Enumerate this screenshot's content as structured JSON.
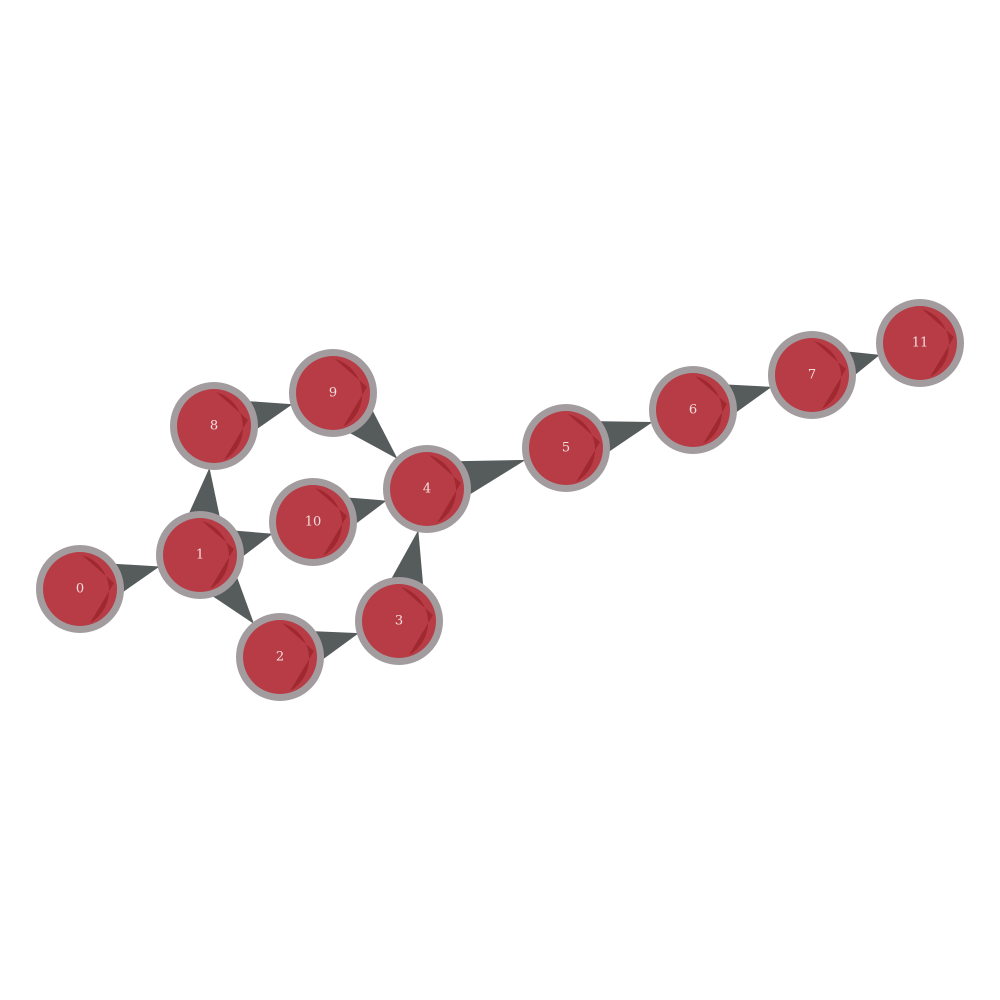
{
  "colors": {
    "background": "#ffffff",
    "node_fill": "#b83c46",
    "node_stroke": "#a29c9f",
    "node_shadow": "#8f1d22",
    "edge": "#565b5c",
    "label": "#f3dede"
  },
  "nodes": [
    {
      "id": "0",
      "label": "0"
    },
    {
      "id": "1",
      "label": "1"
    },
    {
      "id": "2",
      "label": "2"
    },
    {
      "id": "3",
      "label": "3"
    },
    {
      "id": "4",
      "label": "4"
    },
    {
      "id": "5",
      "label": "5"
    },
    {
      "id": "6",
      "label": "6"
    },
    {
      "id": "7",
      "label": "7"
    },
    {
      "id": "8",
      "label": "8"
    },
    {
      "id": "9",
      "label": "9"
    },
    {
      "id": "10",
      "label": "10"
    },
    {
      "id": "11",
      "label": "11"
    }
  ],
  "edges": [
    {
      "source": "0",
      "target": "1"
    },
    {
      "source": "1",
      "target": "8"
    },
    {
      "source": "1",
      "target": "10"
    },
    {
      "source": "1",
      "target": "2"
    },
    {
      "source": "8",
      "target": "9"
    },
    {
      "source": "9",
      "target": "4"
    },
    {
      "source": "10",
      "target": "4"
    },
    {
      "source": "2",
      "target": "3"
    },
    {
      "source": "3",
      "target": "4"
    },
    {
      "source": "4",
      "target": "5"
    },
    {
      "source": "5",
      "target": "6"
    },
    {
      "source": "6",
      "target": "7"
    },
    {
      "source": "7",
      "target": "11"
    }
  ]
}
